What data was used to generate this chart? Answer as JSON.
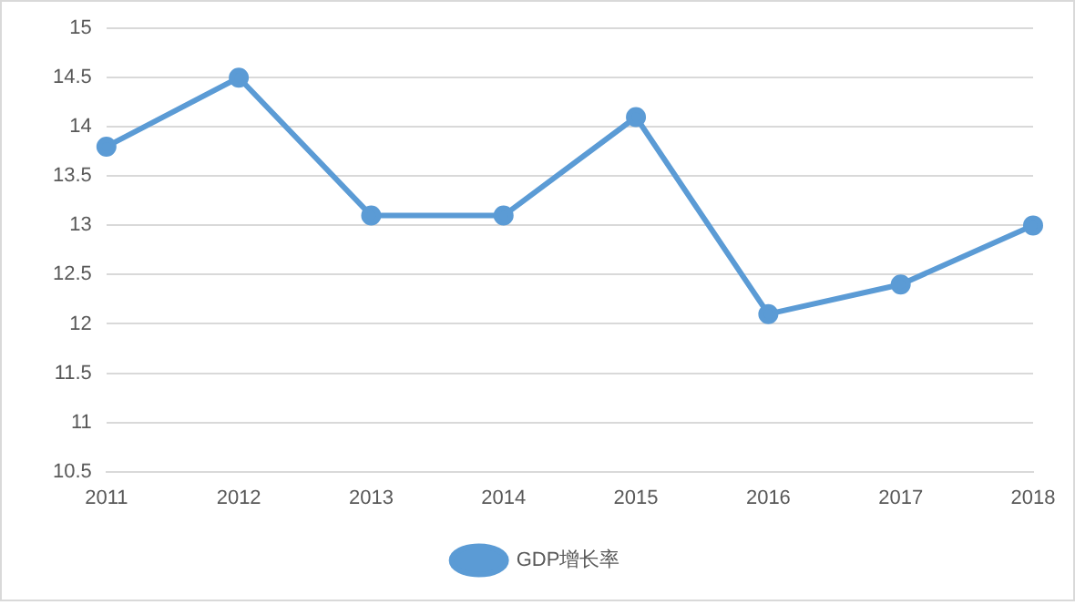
{
  "chart_data": {
    "type": "line",
    "categories": [
      "2011",
      "2012",
      "2013",
      "2014",
      "2015",
      "2016",
      "2017",
      "2018"
    ],
    "series": [
      {
        "name": "GDP增长率",
        "color": "#5b9bd5",
        "values": [
          13.8,
          14.5,
          13.1,
          13.1,
          14.1,
          12.1,
          12.4,
          13.0
        ]
      }
    ],
    "ylim": [
      10.5,
      15
    ],
    "yticks": [
      10.5,
      11,
      11.5,
      12,
      12.5,
      13,
      13.5,
      14,
      14.5,
      15
    ],
    "grid": "y",
    "legend": "bottom",
    "marker": "circle",
    "line_style": "solid"
  }
}
